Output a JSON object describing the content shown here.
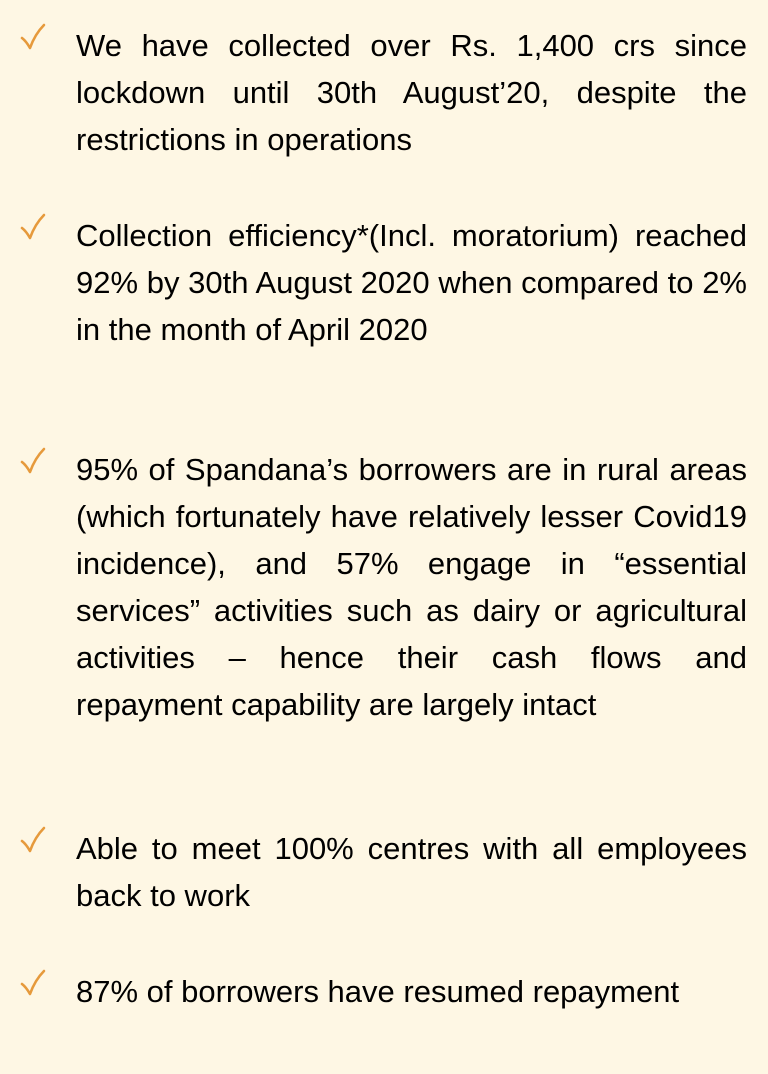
{
  "accent_color": "#E69A3C",
  "bullet_icon": "check-mark-icon",
  "bullets": [
    {
      "text": "We have collected over Rs. 1,400 crs since lockdown until 30th August’20, despite the restrictions in operations"
    },
    {
      "text": "Collection efficiency*(Incl. moratorium) reached 92% by 30th August 2020 when compared to 2% in the month of April 2020"
    },
    {
      "text": "95% of Spandana’s borrowers are in rural areas (which fortunately have relatively lesser Covid19 incidence), and 57% engage in “essential services” activities such as dairy or agricultural activities – hence their cash flows and repayment capability are largely intact"
    },
    {
      "text": "Able to meet 100% centres with all employees back to work"
    },
    {
      "text": "87% of borrowers have resumed repayment"
    }
  ]
}
